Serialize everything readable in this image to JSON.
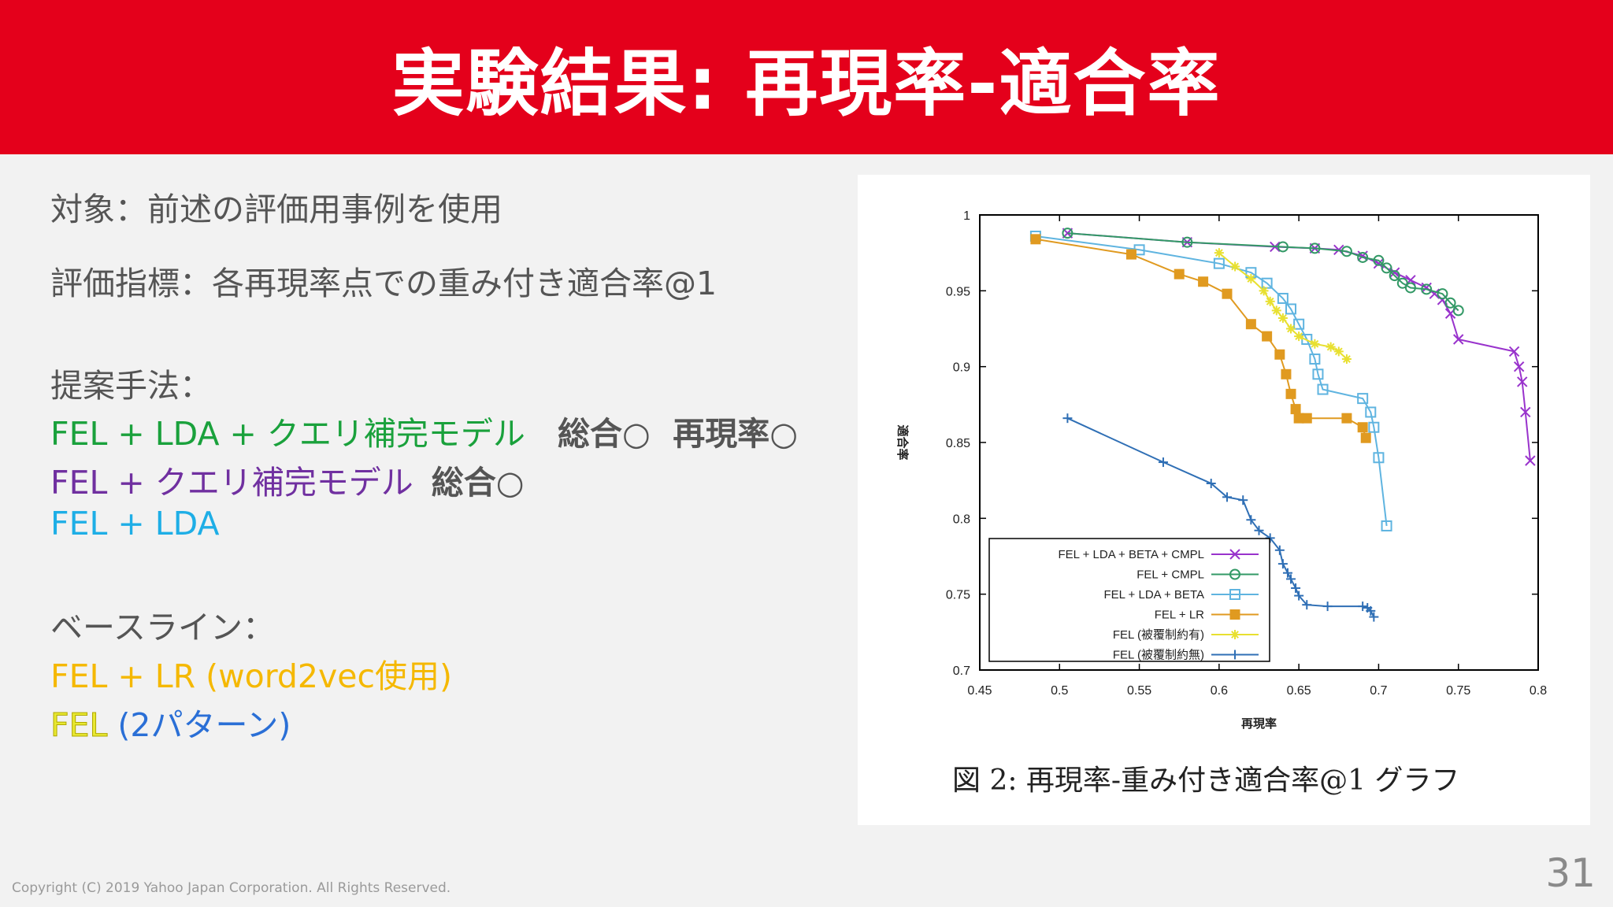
{
  "slide": {
    "title": "実験結果: 再現率-適合率",
    "target": "対象：前述の評価用事例を使用",
    "metric": "評価指標：各再現率点での重み付き適合率@1",
    "proposed_heading": "提案手法：",
    "proposed": [
      {
        "label": "FEL + LDA + クエリ補完モデル",
        "note": "総合○  再現率○",
        "color": "#1aa13c"
      },
      {
        "label": "FEL + クエリ補完モデル",
        "note": "総合○",
        "color": "#7030a0"
      },
      {
        "label": "FEL + LDA",
        "note": "",
        "color": "#1eaee6"
      }
    ],
    "baseline_heading": "ベースライン：",
    "baselines": [
      {
        "label": "FEL + LR (word2vec使用)",
        "color": "#f5b800"
      },
      {
        "label": "FEL",
        "color": "#e8e830"
      },
      {
        "label": "(2パターン)",
        "color": "#2a6fd6"
      }
    ],
    "copyright": "Copyright (C) 2019 Yahoo Japan Corporation. All Rights Reserved.",
    "page_number": "31",
    "caption": "図 2:  再現率-重み付き適合率@1 グラフ"
  },
  "chart_data": {
    "type": "line",
    "xlabel": "再現率",
    "ylabel": "適合率",
    "xlim": [
      0.45,
      0.8
    ],
    "ylim": [
      0.7,
      1.0
    ],
    "xticks": [
      "0.45",
      "0.5",
      "0.55",
      "0.6",
      "0.65",
      "0.7",
      "0.75",
      "0.8"
    ],
    "yticks": [
      "0.7",
      "0.75",
      "0.8",
      "0.85",
      "0.9",
      "0.95",
      "1"
    ],
    "legend_position": "bottom-left",
    "series": [
      {
        "name": "FEL + LDA + BETA + CMPL",
        "color": "#9933cc",
        "marker": "x",
        "x": [
          0.505,
          0.58,
          0.635,
          0.66,
          0.675,
          0.69,
          0.7,
          0.71,
          0.72,
          0.73,
          0.735,
          0.74,
          0.745,
          0.75,
          0.785,
          0.788,
          0.79,
          0.792,
          0.795
        ],
        "y": [
          0.988,
          0.982,
          0.979,
          0.978,
          0.977,
          0.973,
          0.968,
          0.962,
          0.957,
          0.952,
          0.948,
          0.944,
          0.935,
          0.918,
          0.91,
          0.9,
          0.89,
          0.87,
          0.838
        ]
      },
      {
        "name": "FEL + CMPL",
        "color": "#339966",
        "marker": "o",
        "x": [
          0.505,
          0.58,
          0.64,
          0.66,
          0.68,
          0.69,
          0.7,
          0.705,
          0.71,
          0.715,
          0.72,
          0.73,
          0.74,
          0.745,
          0.75
        ],
        "y": [
          0.988,
          0.982,
          0.979,
          0.978,
          0.976,
          0.972,
          0.97,
          0.965,
          0.96,
          0.955,
          0.952,
          0.951,
          0.948,
          0.942,
          0.937
        ]
      },
      {
        "name": "FEL + LDA + BETA",
        "color": "#5fb4e0",
        "marker": "square",
        "x": [
          0.485,
          0.55,
          0.6,
          0.62,
          0.63,
          0.64,
          0.645,
          0.65,
          0.655,
          0.66,
          0.662,
          0.665,
          0.69,
          0.695,
          0.697,
          0.7,
          0.705
        ],
        "y": [
          0.986,
          0.977,
          0.968,
          0.962,
          0.955,
          0.945,
          0.938,
          0.928,
          0.918,
          0.905,
          0.895,
          0.885,
          0.879,
          0.87,
          0.86,
          0.84,
          0.795
        ]
      },
      {
        "name": "FEL + LR",
        "color": "#e09a20",
        "marker": "fsquare",
        "x": [
          0.485,
          0.545,
          0.575,
          0.59,
          0.605,
          0.62,
          0.63,
          0.638,
          0.642,
          0.645,
          0.648,
          0.65,
          0.655,
          0.68,
          0.69,
          0.692
        ],
        "y": [
          0.984,
          0.974,
          0.961,
          0.956,
          0.948,
          0.928,
          0.92,
          0.908,
          0.895,
          0.882,
          0.872,
          0.866,
          0.866,
          0.866,
          0.86,
          0.853
        ]
      },
      {
        "name": "FEL (被覆制約有)",
        "color": "#e8e030",
        "marker": "star",
        "x": [
          0.6,
          0.61,
          0.62,
          0.628,
          0.632,
          0.636,
          0.64,
          0.645,
          0.65,
          0.66,
          0.67,
          0.675,
          0.68
        ],
        "y": [
          0.975,
          0.966,
          0.958,
          0.95,
          0.943,
          0.937,
          0.932,
          0.925,
          0.92,
          0.915,
          0.913,
          0.91,
          0.905
        ]
      },
      {
        "name": "FEL (被覆制約無)",
        "color": "#2f6fb5",
        "marker": "plus",
        "x": [
          0.505,
          0.565,
          0.595,
          0.605,
          0.615,
          0.62,
          0.625,
          0.632,
          0.638,
          0.64,
          0.643,
          0.645,
          0.648,
          0.65,
          0.655,
          0.668,
          0.69,
          0.693,
          0.695,
          0.697
        ],
        "y": [
          0.866,
          0.837,
          0.823,
          0.814,
          0.812,
          0.799,
          0.792,
          0.787,
          0.779,
          0.77,
          0.764,
          0.76,
          0.754,
          0.749,
          0.743,
          0.742,
          0.742,
          0.741,
          0.739,
          0.735
        ]
      }
    ]
  }
}
